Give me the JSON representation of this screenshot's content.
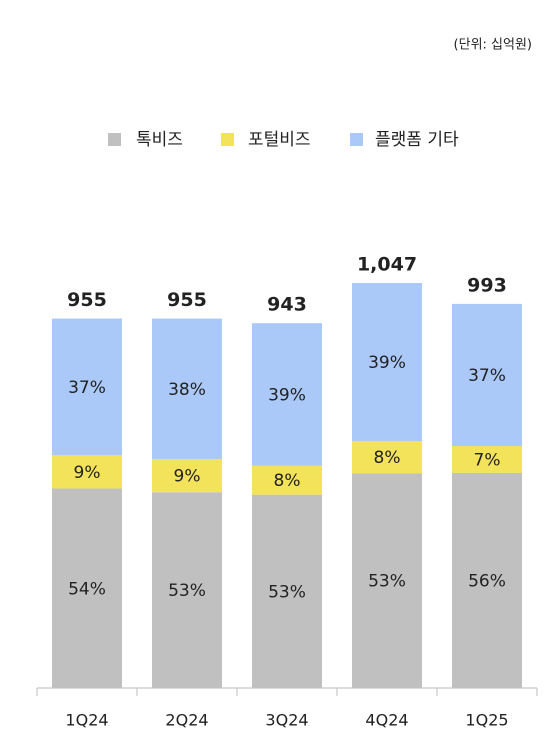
{
  "chart_data": {
    "type": "stacked-bar",
    "unit_note": "(단위: 십억원)",
    "categories": [
      "1Q24",
      "2Q24",
      "3Q24",
      "4Q24",
      "1Q25"
    ],
    "totals": {
      "values": [
        955,
        955,
        943,
        1047,
        993
      ],
      "value_labels": [
        "955",
        "955",
        "943",
        "1,047",
        "993"
      ]
    },
    "series": [
      {
        "name": "톡비즈",
        "color": "#c0c0c0",
        "values": [
          54,
          53,
          53,
          53,
          56
        ],
        "value_labels": [
          "54%",
          "53%",
          "53%",
          "53%",
          "56%"
        ]
      },
      {
        "name": "포털비즈",
        "color": "#f2e35a",
        "values": [
          9,
          9,
          8,
          8,
          7
        ],
        "value_labels": [
          "9%",
          "9%",
          "8%",
          "8%",
          "7%"
        ]
      },
      {
        "name": "플랫폼 기타",
        "color": "#aac8f8",
        "values": [
          37,
          38,
          39,
          39,
          37
        ],
        "value_labels": [
          "37%",
          "38%",
          "39%",
          "39%",
          "37%"
        ]
      }
    ],
    "legend": "top"
  }
}
